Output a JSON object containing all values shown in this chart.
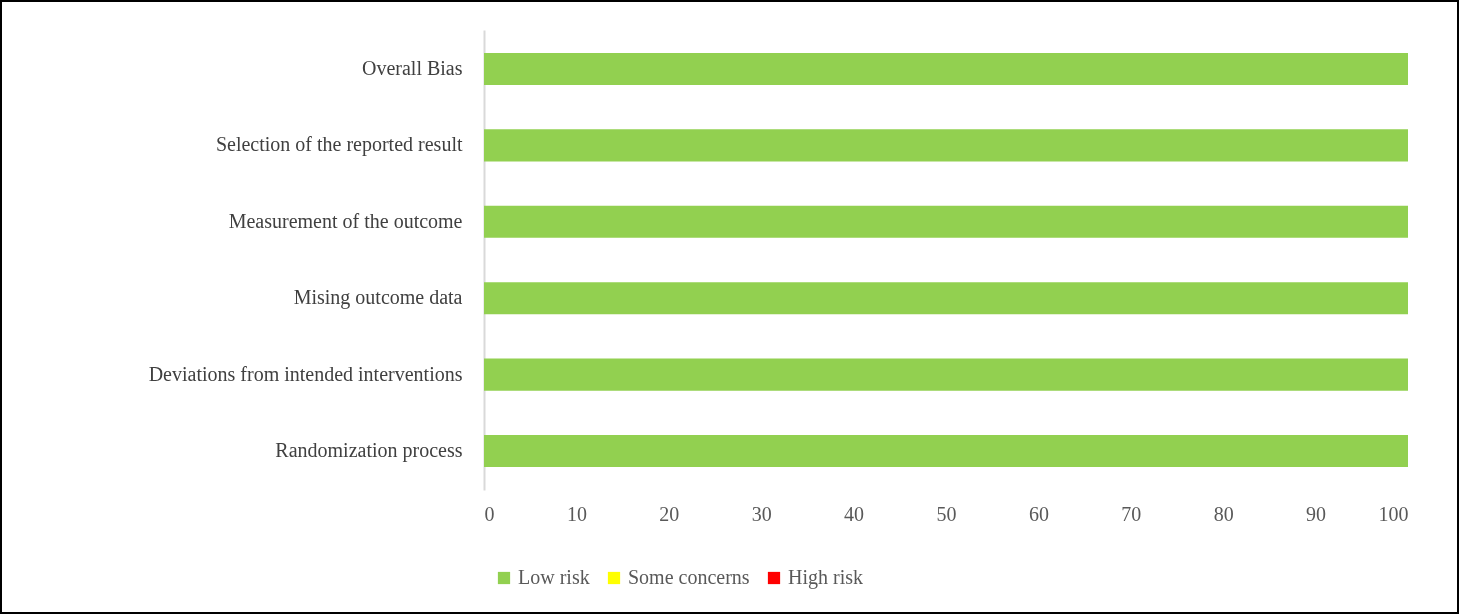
{
  "chart_data": {
    "type": "bar",
    "orientation": "horizontal",
    "stacked": true,
    "categories": [
      "Overall Bias",
      "Selection of the reported result",
      "Measurement of the outcome",
      "Mising outcome data",
      "Deviations from intended interventions",
      "Randomization process"
    ],
    "series": [
      {
        "name": "Low risk",
        "color": "#92d050",
        "values": [
          100,
          100,
          100,
          100,
          100,
          100
        ]
      },
      {
        "name": "Some concerns",
        "color": "#ffff00",
        "values": [
          0,
          0,
          0,
          0,
          0,
          0
        ]
      },
      {
        "name": "High risk",
        "color": "#ff0000",
        "values": [
          0,
          0,
          0,
          0,
          0,
          0
        ]
      }
    ],
    "xlim": [
      0,
      100
    ],
    "xticks": [
      0,
      10,
      20,
      30,
      40,
      50,
      60,
      70,
      80,
      90,
      100
    ],
    "grid": false,
    "legend": "bottom"
  }
}
